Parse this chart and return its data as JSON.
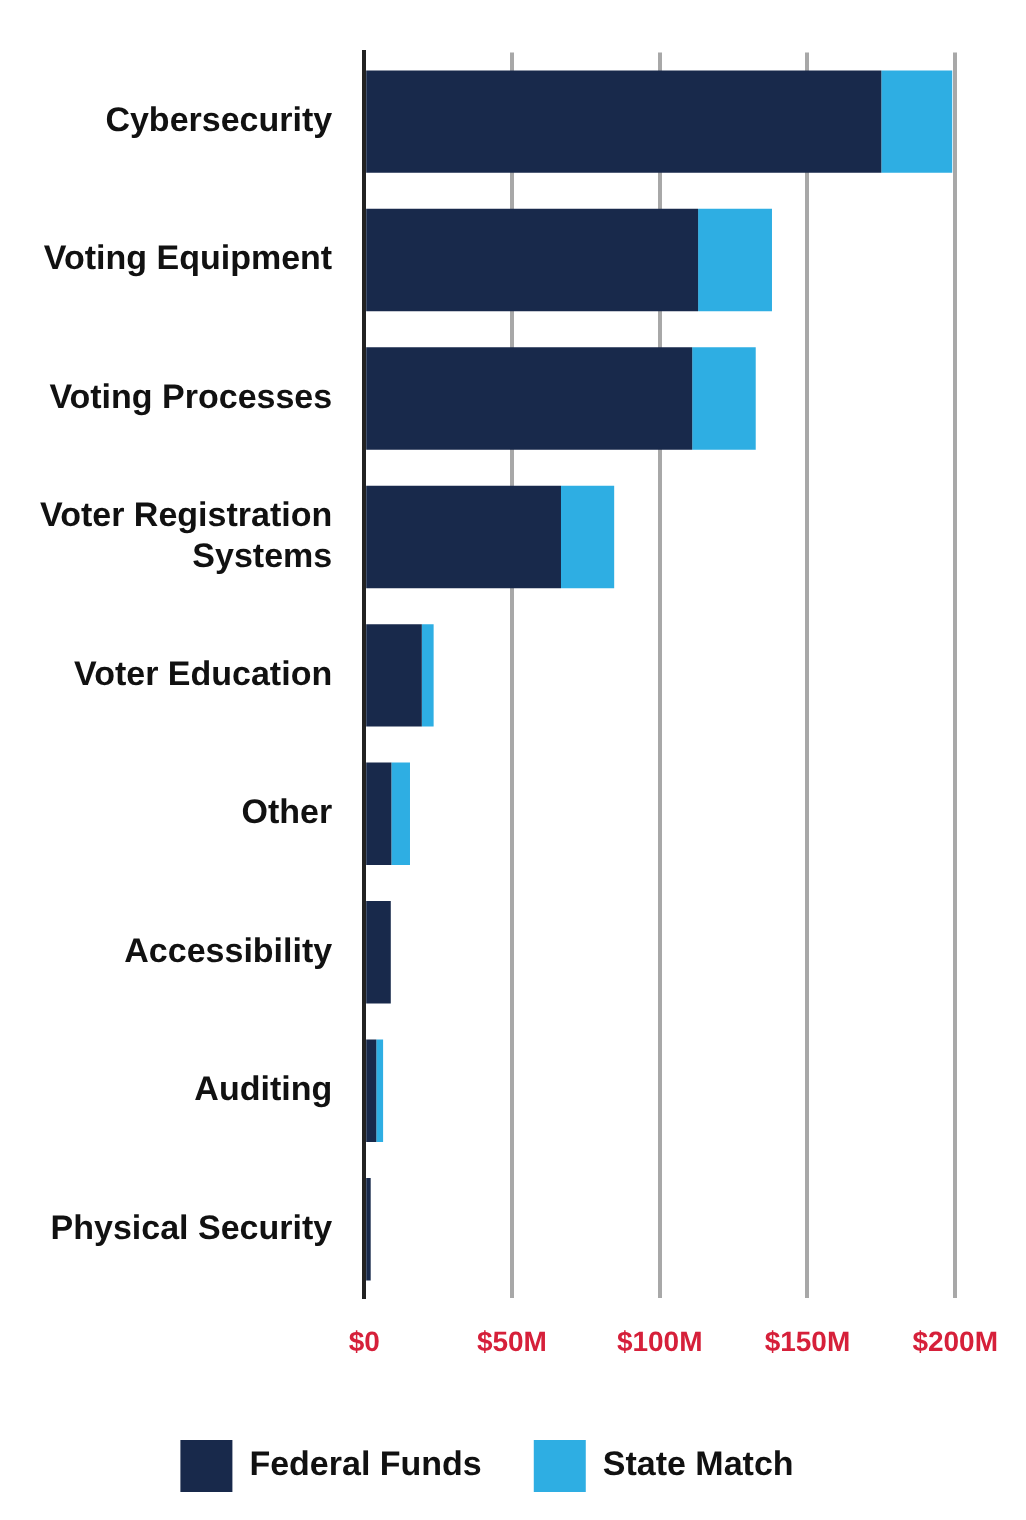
{
  "chart_data": {
    "type": "bar",
    "orientation": "horizontal",
    "stacked": true,
    "categories": [
      "Cybersecurity",
      "Voting Equipment",
      "Voting Processes",
      "Voter Registration Systems",
      "Voter Education",
      "Other",
      "Accessibility",
      "Auditing",
      "Physical Security"
    ],
    "series": [
      {
        "name": "Federal Funds",
        "color": "#18294b",
        "values": [
          175,
          113,
          111,
          66.6,
          19.5,
          9.2,
          9,
          4.1,
          2.2
        ]
      },
      {
        "name": "State Match",
        "color": "#2eaee3",
        "values": [
          24,
          25,
          21.5,
          18,
          4,
          6.3,
          0,
          2.3,
          0
        ]
      }
    ],
    "xlim": [
      0,
      200
    ],
    "xticks": [
      {
        "value": 0,
        "label": "$0"
      },
      {
        "value": 50,
        "label": "$50M"
      },
      {
        "value": 100,
        "label": "$100M"
      },
      {
        "value": 150,
        "label": "$150M"
      },
      {
        "value": 200,
        "label": "$200M"
      }
    ],
    "grid": "x",
    "legend": "bottom"
  }
}
